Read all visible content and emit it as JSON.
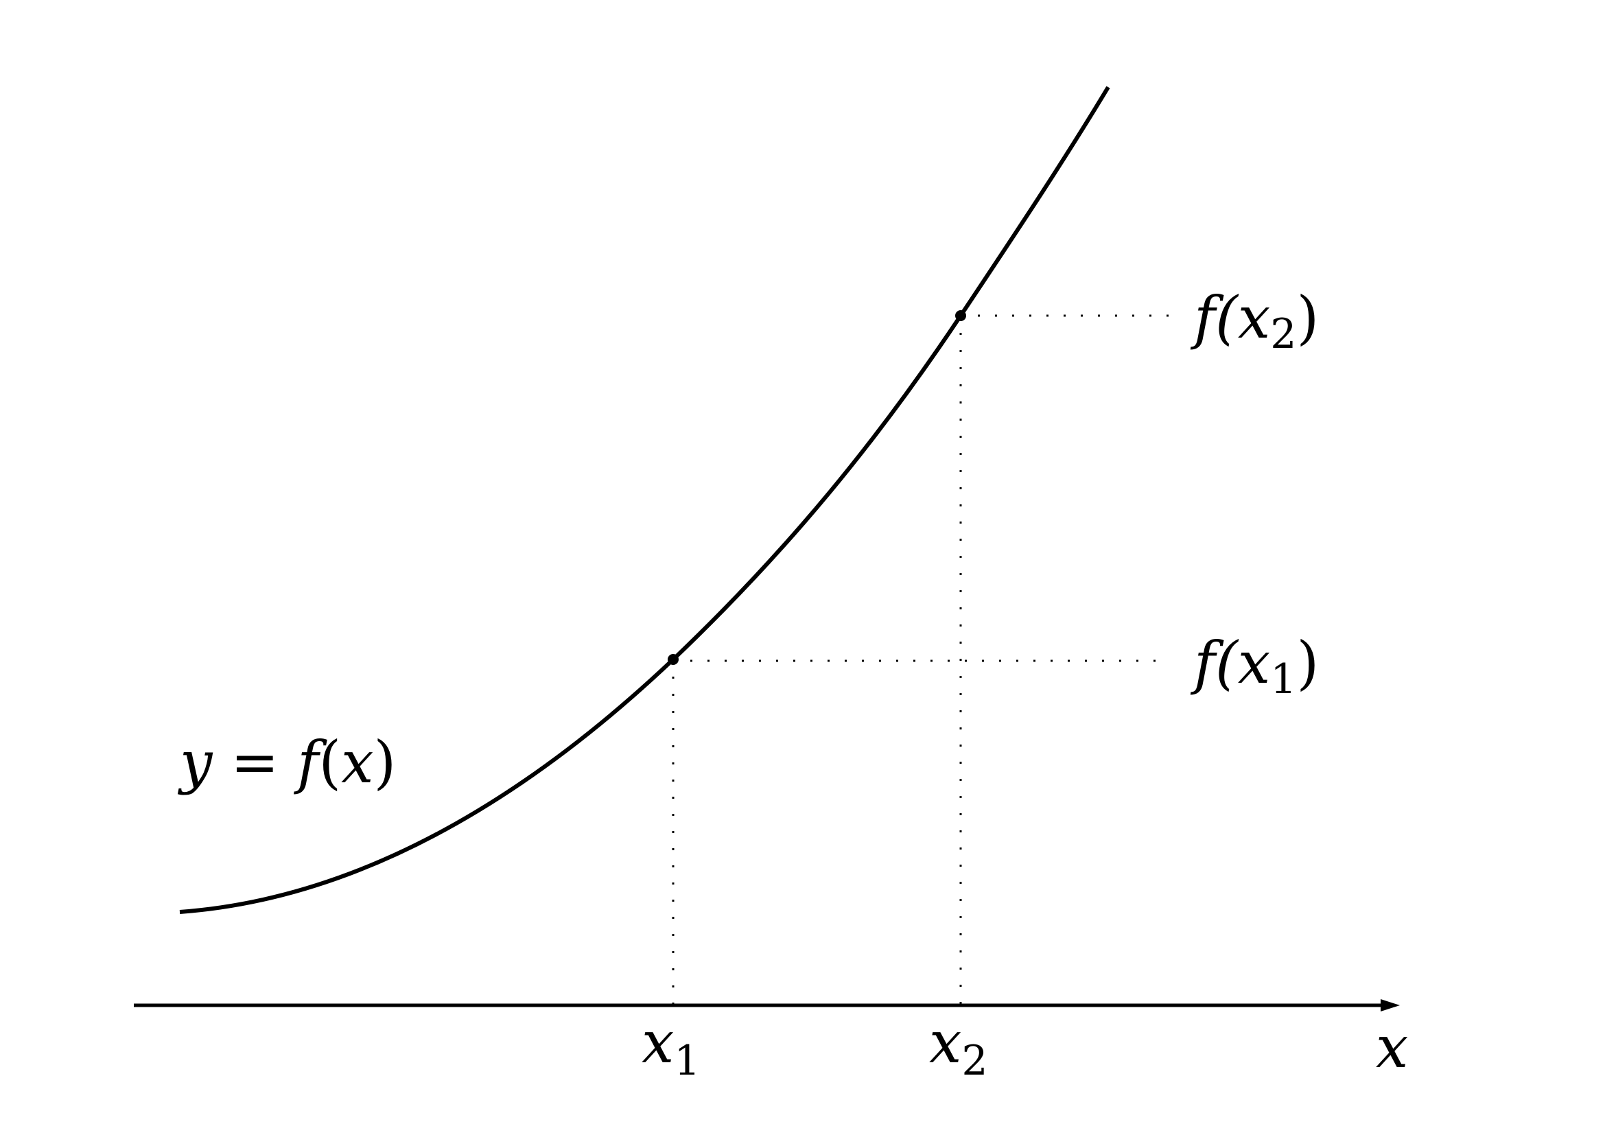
{
  "diagram": {
    "curve_label": {
      "y": "y",
      "eq": " = ",
      "f": "f",
      "open": "(",
      "x": "x",
      "close": ")"
    },
    "axis_label": "x",
    "points": [
      {
        "x_name": "x",
        "x_sub": "1",
        "fx_prefix": "f(",
        "fx_var": "x",
        "fx_sub": "1",
        "fx_suffix": ")"
      },
      {
        "x_name": "x",
        "x_sub": "2",
        "fx_prefix": "f(",
        "fx_var": "x",
        "fx_sub": "2",
        "fx_suffix": ")"
      }
    ],
    "colors": {
      "ink": "#000000",
      "background": "#ffffff"
    }
  }
}
